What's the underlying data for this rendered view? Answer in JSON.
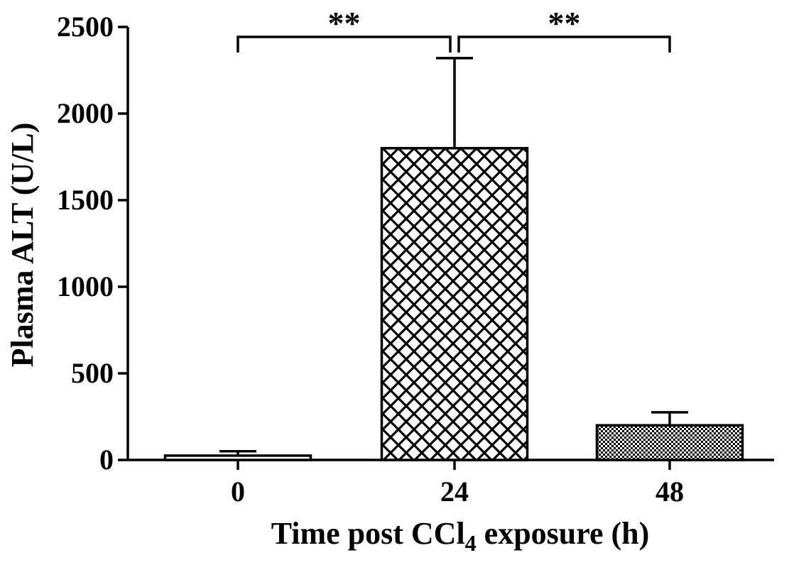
{
  "chart_data": {
    "type": "bar",
    "categories": [
      "0",
      "24",
      "48"
    ],
    "values": [
      25,
      1800,
      200
    ],
    "errors": [
      25,
      520,
      75
    ],
    "ylim": [
      0,
      2500
    ],
    "yticks": [
      "0",
      "500",
      "1000",
      "1500",
      "2000",
      "2500"
    ],
    "ylabel": "Plasma ALT (U/L)",
    "xlabel_main": "Time post CCl",
    "xlabel_sub": "4",
    "xlabel_tail": " exposure (h)",
    "bar_patterns": [
      "solid-thin",
      "crosshatch",
      "dots"
    ],
    "significance": [
      {
        "from": 0,
        "to": 1,
        "label": "**"
      },
      {
        "from": 1,
        "to": 2,
        "label": "**"
      }
    ],
    "grid": false,
    "colors": {
      "bar_stroke": "#000000",
      "background": "#ffffff"
    }
  }
}
